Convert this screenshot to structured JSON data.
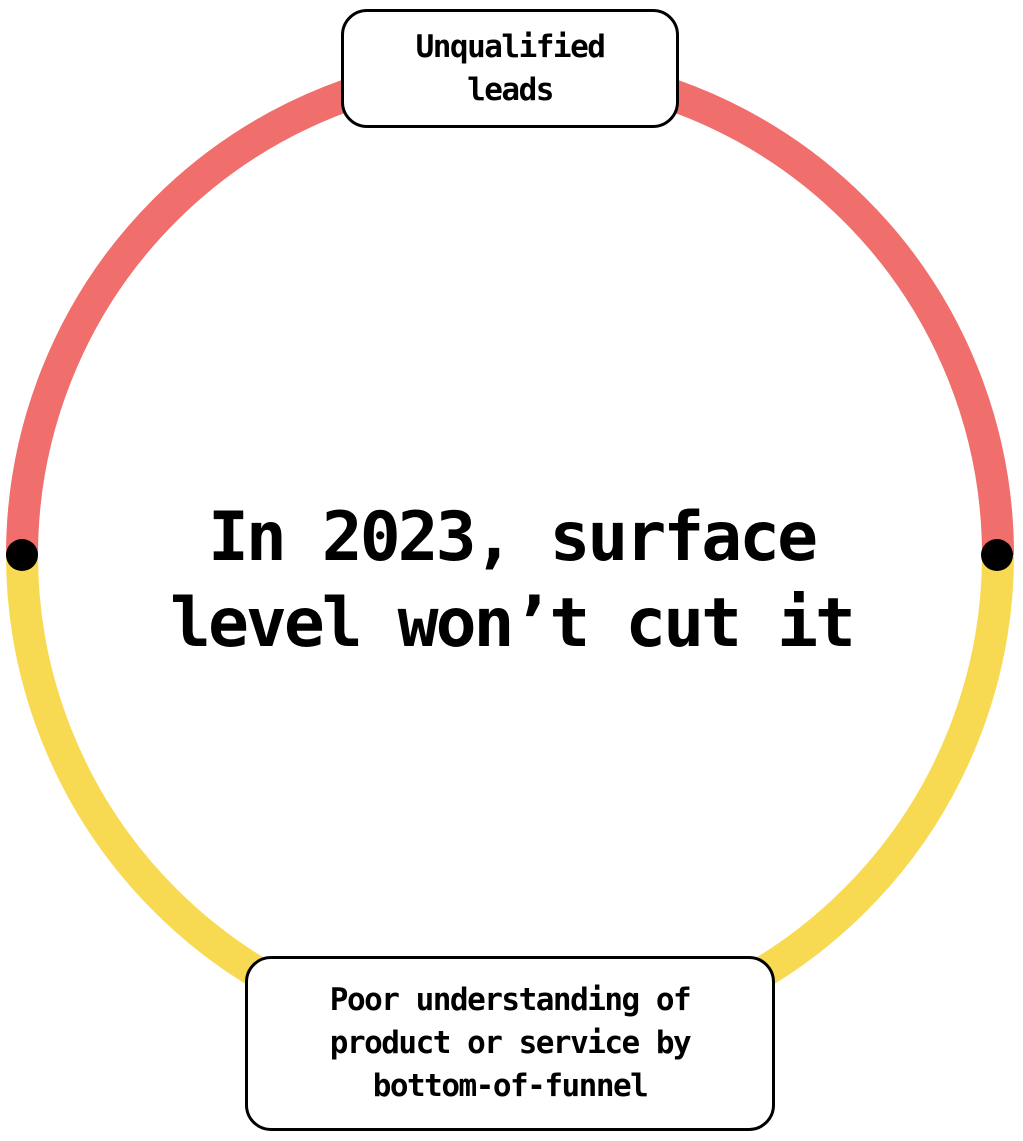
{
  "headline": {
    "line1": "In 2023, surface",
    "line2": "level won’t cut it"
  },
  "top_label": {
    "text": "Unqualified\nleads"
  },
  "bottom_label": {
    "text": "Poor understanding of\nproduct or service by\nbottom-of-funnel"
  },
  "colors": {
    "top_arc": "#F06E6B",
    "bottom_arc": "#F8DA52",
    "divider_dot": "#000000",
    "text": "#000000"
  }
}
